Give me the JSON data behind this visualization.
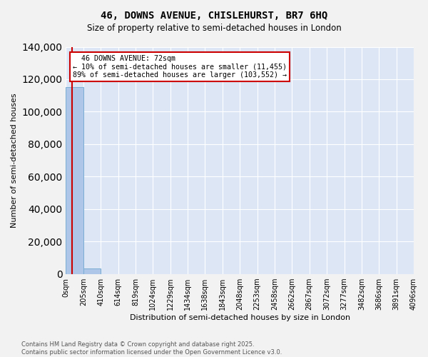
{
  "title": "46, DOWNS AVENUE, CHISLEHURST, BR7 6HQ",
  "subtitle": "Size of property relative to semi-detached houses in London",
  "xlabel": "Distribution of semi-detached houses by size in London",
  "ylabel": "Number of semi-detached houses",
  "property_size": 72,
  "property_label": "46 DOWNS AVENUE: 72sqm",
  "pct_smaller": 10,
  "pct_larger": 89,
  "n_smaller": 11455,
  "n_larger": 103552,
  "bin_edges": [
    0,
    205,
    410,
    614,
    819,
    1024,
    1229,
    1434,
    1638,
    1843,
    2048,
    2253,
    2458,
    2662,
    2867,
    3072,
    3277,
    3482,
    3686,
    3891,
    4096
  ],
  "bin_labels": [
    "0sqm",
    "205sqm",
    "410sqm",
    "614sqm",
    "819sqm",
    "1024sqm",
    "1229sqm",
    "1434sqm",
    "1638sqm",
    "1843sqm",
    "2048sqm",
    "2253sqm",
    "2458sqm",
    "2662sqm",
    "2867sqm",
    "3072sqm",
    "3277sqm",
    "3482sqm",
    "3686sqm",
    "3891sqm",
    "4096sqm"
  ],
  "bar_heights": [
    115007,
    3500,
    0,
    0,
    0,
    0,
    0,
    0,
    0,
    0,
    0,
    0,
    0,
    0,
    0,
    0,
    0,
    0,
    0,
    0
  ],
  "bar_color": "#aec6e8",
  "bar_edge_color": "#7aadd4",
  "property_line_color": "#cc0000",
  "annotation_box_edgecolor": "#cc0000",
  "plot_bg_color": "#dce6f5",
  "grid_color": "#ffffff",
  "fig_bg_color": "#f2f2f2",
  "ylim": [
    0,
    140000
  ],
  "ytick_step": 20000,
  "footer_text": "Contains HM Land Registry data © Crown copyright and database right 2025.\nContains public sector information licensed under the Open Government Licence v3.0."
}
